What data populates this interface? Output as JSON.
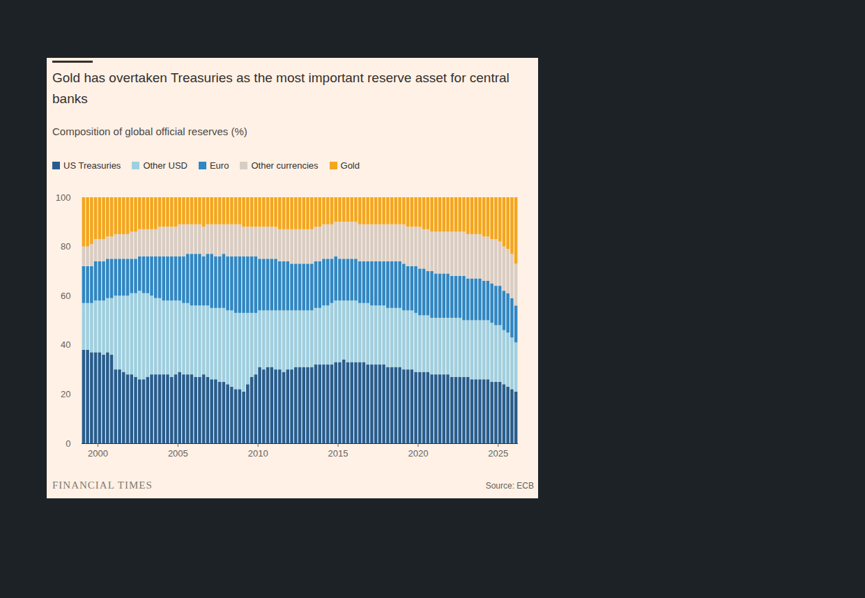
{
  "chart_data": {
    "type": "bar",
    "stacked": true,
    "title": "Gold has overtaken Treasuries as the most important reserve asset for central banks",
    "subtitle": "Composition of global official reserves (%)",
    "logo": "FINANCIAL TIMES",
    "source": "Source: ECB",
    "legend": "top",
    "grid": false,
    "x": [
      1999,
      1999.25,
      1999.5,
      1999.75,
      2000,
      2000.25,
      2000.5,
      2000.75,
      2001,
      2001.25,
      2001.5,
      2001.75,
      2002,
      2002.25,
      2002.5,
      2002.75,
      2003,
      2003.25,
      2003.5,
      2003.75,
      2004,
      2004.25,
      2004.5,
      2004.75,
      2005,
      2005.25,
      2005.5,
      2005.75,
      2006,
      2006.25,
      2006.5,
      2006.75,
      2007,
      2007.25,
      2007.5,
      2007.75,
      2008,
      2008.25,
      2008.5,
      2008.75,
      2009,
      2009.25,
      2009.5,
      2009.75,
      2010,
      2010.25,
      2010.5,
      2010.75,
      2011,
      2011.25,
      2011.5,
      2011.75,
      2012,
      2012.25,
      2012.5,
      2012.75,
      2013,
      2013.25,
      2013.5,
      2013.75,
      2014,
      2014.25,
      2014.5,
      2014.75,
      2015,
      2015.25,
      2015.5,
      2015.75,
      2016,
      2016.25,
      2016.5,
      2016.75,
      2017,
      2017.25,
      2017.5,
      2017.75,
      2018,
      2018.25,
      2018.5,
      2018.75,
      2019,
      2019.25,
      2019.5,
      2019.75,
      2020,
      2020.25,
      2020.5,
      2020.75,
      2021,
      2021.25,
      2021.5,
      2021.75,
      2022,
      2022.25,
      2022.5,
      2022.75,
      2023,
      2023.25,
      2023.5,
      2023.75,
      2024,
      2024.25,
      2024.5,
      2024.75,
      2025,
      2025.25,
      2025.5,
      2025.75,
      2026
    ],
    "xlim": [
      1999,
      2026.25
    ],
    "xticks": [
      2000,
      2005,
      2010,
      2015,
      2020,
      2025
    ],
    "ylim": [
      0,
      100
    ],
    "yticks": [
      0,
      20,
      40,
      60,
      80,
      100
    ],
    "series": [
      {
        "name": "US Treasuries",
        "color": "#275d8e",
        "values": [
          38,
          38,
          37,
          37,
          37,
          36,
          37,
          36,
          30,
          30,
          29,
          28,
          28,
          27,
          26,
          26,
          27,
          28,
          28,
          28,
          28,
          28,
          27,
          28,
          29,
          28,
          28,
          28,
          27,
          27,
          28,
          27,
          26,
          26,
          25,
          25,
          24,
          23,
          22,
          22,
          21,
          24,
          27,
          28,
          31,
          30,
          31,
          31,
          30,
          30,
          29,
          30,
          30,
          31,
          31,
          31,
          31,
          31,
          32,
          32,
          32,
          32,
          32,
          33,
          33,
          34,
          33,
          33,
          33,
          33,
          33,
          32,
          32,
          32,
          32,
          32,
          31,
          31,
          31,
          31,
          30,
          30,
          30,
          29,
          29,
          29,
          29,
          28,
          28,
          28,
          28,
          28,
          27,
          27,
          27,
          27,
          27,
          26,
          26,
          26,
          26,
          26,
          25,
          25,
          25,
          24,
          23,
          22,
          21
        ]
      },
      {
        "name": "Other USD",
        "color": "#9ecfe0",
        "values": [
          19,
          19,
          20,
          21,
          21,
          22,
          22,
          23,
          30,
          30,
          31,
          32,
          33,
          34,
          36,
          35,
          34,
          32,
          31,
          31,
          30,
          30,
          31,
          30,
          29,
          29,
          29,
          28,
          29,
          29,
          28,
          29,
          29,
          29,
          30,
          30,
          30,
          31,
          31,
          31,
          32,
          29,
          26,
          25,
          23,
          24,
          23,
          23,
          24,
          24,
          25,
          24,
          24,
          23,
          23,
          23,
          23,
          23,
          23,
          23,
          24,
          24,
          25,
          25,
          25,
          24,
          25,
          25,
          25,
          24,
          24,
          25,
          24,
          24,
          24,
          24,
          24,
          24,
          24,
          24,
          24,
          24,
          24,
          24,
          23,
          23,
          23,
          23,
          23,
          23,
          23,
          23,
          24,
          24,
          24,
          23,
          23,
          24,
          24,
          24,
          24,
          24,
          24,
          23,
          23,
          22,
          22,
          21,
          20
        ]
      },
      {
        "name": "Euro",
        "color": "#2f87c4",
        "values": [
          15,
          15,
          15,
          16,
          16,
          16,
          16,
          16,
          15,
          15,
          15,
          15,
          14,
          14,
          14,
          15,
          15,
          16,
          17,
          17,
          18,
          18,
          18,
          18,
          18,
          19,
          20,
          21,
          21,
          21,
          20,
          21,
          22,
          21,
          21,
          22,
          22,
          22,
          23,
          23,
          23,
          23,
          23,
          23,
          21,
          21,
          21,
          21,
          21,
          20,
          20,
          20,
          19,
          19,
          19,
          19,
          19,
          19,
          19,
          19,
          19,
          19,
          18,
          18,
          17,
          17,
          17,
          17,
          17,
          17,
          17,
          17,
          18,
          18,
          18,
          18,
          19,
          19,
          19,
          19,
          19,
          18,
          18,
          19,
          19,
          19,
          18,
          19,
          18,
          18,
          18,
          18,
          17,
          17,
          17,
          18,
          17,
          17,
          17,
          17,
          16,
          16,
          16,
          16,
          16,
          16,
          16,
          16,
          15
        ]
      },
      {
        "name": "Other currencies",
        "color": "#d9cdc3",
        "values": [
          8,
          8,
          9,
          9,
          9,
          9,
          9,
          9,
          10,
          10,
          10,
          10,
          11,
          11,
          11,
          11,
          11,
          11,
          11,
          12,
          12,
          12,
          12,
          12,
          13,
          13,
          12,
          12,
          12,
          12,
          12,
          12,
          12,
          13,
          13,
          12,
          13,
          13,
          13,
          13,
          12,
          12,
          12,
          12,
          13,
          13,
          13,
          13,
          13,
          13,
          13,
          13,
          14,
          14,
          14,
          14,
          14,
          14,
          14,
          14,
          14,
          14,
          14,
          14,
          15,
          15,
          15,
          15,
          15,
          15,
          15,
          15,
          15,
          15,
          15,
          15,
          15,
          15,
          15,
          15,
          16,
          16,
          16,
          16,
          17,
          16,
          17,
          16,
          17,
          17,
          17,
          17,
          18,
          18,
          18,
          18,
          18,
          18,
          18,
          18,
          18,
          18,
          18,
          19,
          18,
          18,
          18,
          18,
          17
        ]
      },
      {
        "name": "Gold",
        "color": "#f4a61d",
        "values": [
          20,
          20,
          19,
          17,
          17,
          17,
          16,
          16,
          15,
          15,
          15,
          15,
          14,
          14,
          13,
          13,
          13,
          13,
          13,
          12,
          12,
          12,
          12,
          12,
          11,
          11,
          11,
          11,
          11,
          11,
          12,
          11,
          11,
          11,
          11,
          11,
          11,
          11,
          11,
          11,
          12,
          12,
          12,
          12,
          12,
          12,
          12,
          12,
          12,
          13,
          13,
          13,
          13,
          13,
          13,
          13,
          13,
          13,
          12,
          12,
          11,
          11,
          11,
          10,
          10,
          10,
          10,
          10,
          10,
          11,
          11,
          11,
          11,
          11,
          11,
          11,
          11,
          11,
          11,
          11,
          11,
          12,
          12,
          12,
          12,
          13,
          13,
          14,
          14,
          14,
          14,
          14,
          14,
          14,
          14,
          14,
          15,
          15,
          15,
          15,
          16,
          16,
          17,
          17,
          18,
          20,
          21,
          23,
          27
        ]
      }
    ]
  }
}
